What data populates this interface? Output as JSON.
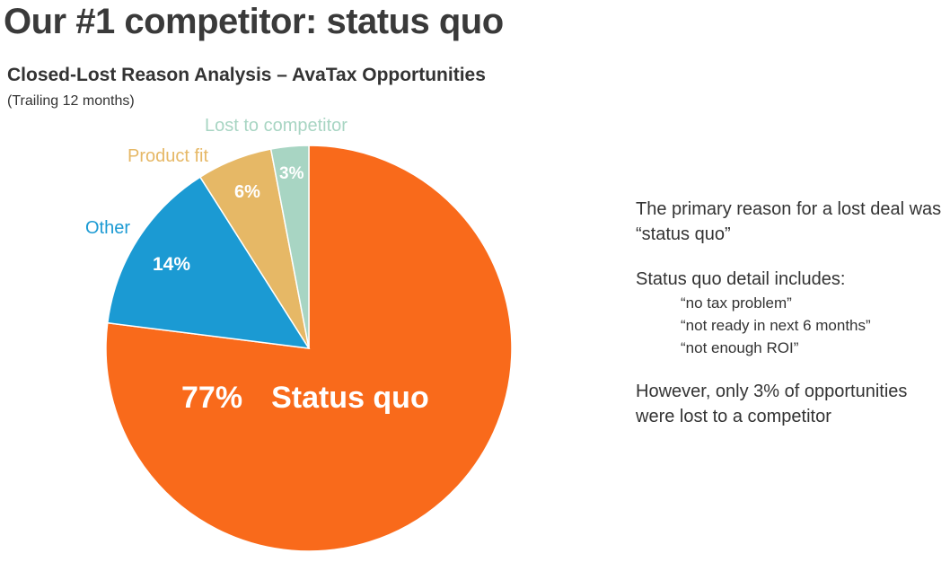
{
  "page_title": "Our #1 competitor:  status quo",
  "chart_data": {
    "type": "pie",
    "title": "Closed-Lost Reason Analysis – AvaTax Opportunities",
    "subtitle": "(Trailing 12 months)",
    "slices": [
      {
        "name": "Status quo",
        "value": 77,
        "value_label": "77%",
        "color": "#f96a1b"
      },
      {
        "name": "Other",
        "value": 14,
        "value_label": "14%",
        "color": "#1b9ad3"
      },
      {
        "name": "Product fit",
        "value": 6,
        "value_label": "6%",
        "color": "#e6b866"
      },
      {
        "name": "Lost to competitor",
        "value": 3,
        "value_label": "3%",
        "color": "#a8d5c3"
      }
    ]
  },
  "notes": {
    "primary": "The primary reason for a lost deal was “status quo”",
    "detail_heading": "Status quo detail includes:",
    "detail_items": [
      "“no tax problem”",
      "“not ready in next 6 months”",
      "“not enough ROI”"
    ],
    "competitor": "However, only 3% of opportunities were lost to a competitor"
  }
}
